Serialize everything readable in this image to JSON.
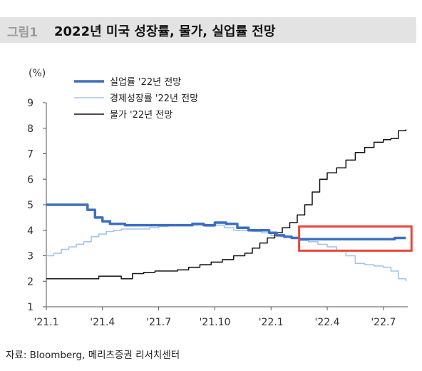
{
  "header": {
    "figure_label": "그림1",
    "title": "2022년 미국 성장률, 물가, 실업률 전망"
  },
  "footer": {
    "source": "자료: Bloomberg, 메리츠증권 리서치센터"
  },
  "highlight_color": "#e8453c",
  "chart_data": {
    "type": "line",
    "title": "2022년 미국 성장률, 물가, 실업률 전망",
    "ylabel": "(%)",
    "ylim": [
      1,
      9
    ],
    "yticks": [
      1,
      2,
      3,
      4,
      5,
      6,
      7,
      8,
      9
    ],
    "xlim": [
      0,
      19.3
    ],
    "xticks": [
      {
        "x": 0,
        "label": "'21.1"
      },
      {
        "x": 3,
        "label": "'21.4"
      },
      {
        "x": 6,
        "label": "'21.7"
      },
      {
        "x": 9,
        "label": "'21.10"
      },
      {
        "x": 12,
        "label": "'22.1"
      },
      {
        "x": 15,
        "label": "'22.4"
      },
      {
        "x": 18,
        "label": "'22.7"
      }
    ],
    "legend_position": "top-left",
    "grid": false,
    "series": [
      {
        "name": "실업률 '22년 전망",
        "color": "#3d6fc1",
        "width": 3.5,
        "x": [
          0,
          0.6,
          1.0,
          1.4,
          1.8,
          2.2,
          2.6,
          3.0,
          3.4,
          3.8,
          4.2,
          4.8,
          5.4,
          6.0,
          6.6,
          7.2,
          7.8,
          8.4,
          9.0,
          9.6,
          10.2,
          10.8,
          11.4,
          11.9,
          12.3,
          12.7,
          13.1,
          13.5,
          14.0,
          14.5,
          15.0,
          16.0,
          17.0,
          18.0,
          18.6,
          19.2
        ],
        "y": [
          5.0,
          5.0,
          5.0,
          5.0,
          5.0,
          4.8,
          4.5,
          4.35,
          4.25,
          4.25,
          4.2,
          4.2,
          4.2,
          4.2,
          4.2,
          4.2,
          4.25,
          4.2,
          4.3,
          4.25,
          4.1,
          4.0,
          4.0,
          3.9,
          3.8,
          3.75,
          3.7,
          3.65,
          3.65,
          3.65,
          3.65,
          3.65,
          3.65,
          3.65,
          3.7,
          3.7
        ]
      },
      {
        "name": "경제성장률 '22년 전망",
        "color": "#a3c5eb",
        "width": 1.6,
        "x": [
          0,
          0.4,
          0.8,
          1.2,
          1.6,
          2.0,
          2.4,
          2.8,
          3.2,
          3.6,
          4.0,
          4.5,
          5.0,
          5.5,
          6.0,
          6.5,
          7.0,
          7.5,
          8.0,
          8.5,
          9.0,
          9.5,
          10.0,
          10.5,
          11.0,
          11.5,
          12.0,
          12.5,
          13.0,
          13.5,
          14.0,
          14.5,
          15.0,
          15.5,
          16.0,
          16.5,
          17.0,
          17.5,
          18.0,
          18.4,
          18.8,
          19.2
        ],
        "y": [
          3.0,
          3.1,
          3.25,
          3.35,
          3.45,
          3.55,
          3.75,
          3.85,
          3.95,
          4.0,
          4.05,
          4.05,
          4.05,
          4.1,
          4.15,
          4.2,
          4.2,
          4.2,
          4.2,
          4.15,
          4.2,
          4.1,
          4.0,
          4.0,
          3.95,
          3.9,
          3.8,
          3.75,
          3.7,
          3.6,
          3.55,
          3.45,
          3.35,
          3.2,
          3.0,
          2.7,
          2.65,
          2.6,
          2.55,
          2.4,
          2.1,
          2.0
        ]
      },
      {
        "name": "물가 '22년 전망",
        "color": "#111111",
        "width": 1.5,
        "x": [
          0,
          0.8,
          1.6,
          2.2,
          2.8,
          3.4,
          4.0,
          4.6,
          5.2,
          5.8,
          6.4,
          7.0,
          7.6,
          8.2,
          8.8,
          9.4,
          10.0,
          10.6,
          11.0,
          11.4,
          11.8,
          12.2,
          12.6,
          13.0,
          13.4,
          13.8,
          14.2,
          14.6,
          15.0,
          15.5,
          16.0,
          16.5,
          17.0,
          17.5,
          18.0,
          18.4,
          18.8,
          19.2
        ],
        "y": [
          2.1,
          2.1,
          2.1,
          2.1,
          2.2,
          2.2,
          2.1,
          2.3,
          2.35,
          2.4,
          2.4,
          2.45,
          2.55,
          2.65,
          2.75,
          2.85,
          3.0,
          3.1,
          3.3,
          3.5,
          3.7,
          3.9,
          4.1,
          4.3,
          4.6,
          5.0,
          5.5,
          6.0,
          6.25,
          6.45,
          6.75,
          7.05,
          7.25,
          7.45,
          7.55,
          7.6,
          7.9,
          7.95
        ]
      }
    ],
    "annotations": [
      {
        "type": "highlight-box",
        "x_range": [
          13.5,
          19.5
        ],
        "y_range": [
          3.2,
          4.15
        ]
      }
    ]
  }
}
